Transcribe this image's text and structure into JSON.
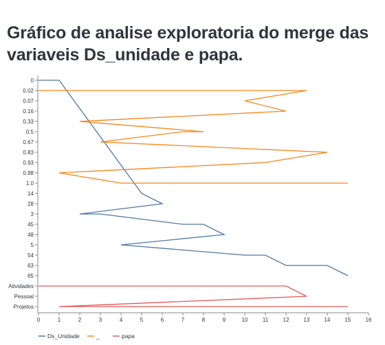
{
  "page": {
    "title": "Gráfico de analise exploratoria do merge das variaveis Ds_unidade e papa."
  },
  "colors": {
    "ds_unidade": "#4c78a8",
    "underscore": "#f58518",
    "papa": "#e45756",
    "axis": "#888888",
    "grid": "#dddddd"
  },
  "chart_data": {
    "type": "line",
    "title": "",
    "xlabel": "",
    "ylabel": "",
    "x_ticks": [
      0,
      1,
      2,
      3,
      4,
      5,
      6,
      7,
      8,
      9,
      10,
      11,
      12,
      13,
      14,
      15,
      16
    ],
    "xlim": [
      0,
      16
    ],
    "grid": false,
    "legend_position": "bottom-left",
    "categories": [
      "0",
      "0.02",
      "0.07",
      "0.16",
      "0.33",
      "0.5",
      "0.67",
      "0.83",
      "0.93",
      "0.98",
      "1.0",
      "14",
      "28",
      "3",
      "45",
      "48",
      "5",
      "54",
      "63",
      "65",
      "Atividades",
      "Pessoal",
      "Projetos"
    ],
    "series": [
      {
        "name": "Ds_Unidade",
        "color": "#4c78a8",
        "points": [
          [
            "0",
            0
          ],
          [
            "0",
            1
          ],
          [
            "14",
            5
          ],
          [
            "28",
            6
          ],
          [
            "3",
            2
          ],
          [
            "3",
            3
          ],
          [
            "45",
            7
          ],
          [
            "45",
            8
          ],
          [
            "48",
            9
          ],
          [
            "5",
            4
          ],
          [
            "54",
            10
          ],
          [
            "54",
            11
          ],
          [
            "63",
            12
          ],
          [
            "63",
            14
          ],
          [
            "65",
            15
          ]
        ]
      },
      {
        "name": "_",
        "color": "#f58518",
        "points": [
          [
            "0.02",
            0
          ],
          [
            "0.02",
            13
          ],
          [
            "0.07",
            10
          ],
          [
            "0.16",
            12
          ],
          [
            "0.33",
            2
          ],
          [
            "0.5",
            8
          ],
          [
            "0.5",
            7
          ],
          [
            "0.67",
            3
          ],
          [
            "0.83",
            14
          ],
          [
            "0.93",
            11
          ],
          [
            "0.98",
            1
          ],
          [
            "1.0",
            4
          ],
          [
            "1.0",
            15
          ]
        ]
      },
      {
        "name": "papa",
        "color": "#e45756",
        "points": [
          [
            "Atividades",
            0
          ],
          [
            "Atividades",
            12
          ],
          [
            "Pessoal",
            13
          ],
          [
            "Projetos",
            1
          ],
          [
            "Projetos",
            15
          ]
        ]
      }
    ]
  }
}
